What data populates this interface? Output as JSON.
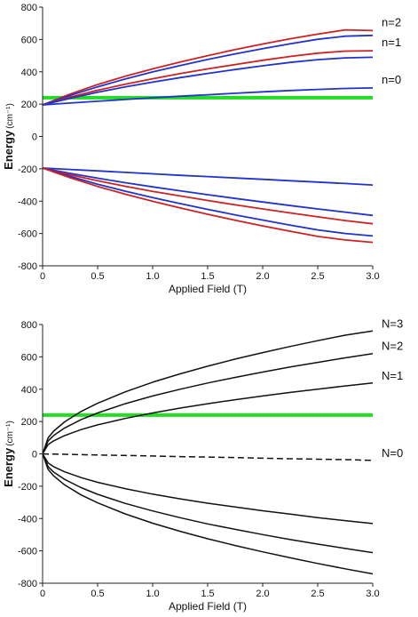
{
  "chart_data": [
    {
      "type": "line",
      "xlabel": "Applied Field (T)",
      "ylabel": "Energy",
      "ylabel_unit": "(cm⁻¹)",
      "xlim": [
        0,
        3.0
      ],
      "ylim": [
        -800,
        800
      ],
      "x_ticks": [
        0,
        0.5,
        1.0,
        1.5,
        2.0,
        2.5,
        3.0
      ],
      "x_tick_labels": [
        "0",
        "0.5",
        "1.0",
        "1.5",
        "2.0",
        "2.5",
        "3.0"
      ],
      "y_ticks": [
        -800,
        -600,
        -400,
        -200,
        0,
        200,
        400,
        600,
        800
      ],
      "y_tick_labels": [
        "-800",
        "-600",
        "-400",
        "-200",
        "0",
        "200",
        "400",
        "600",
        "800"
      ],
      "grid": false,
      "gap_band": [
        0,
        200
      ],
      "x": [
        0,
        0.25,
        0.5,
        0.75,
        1.0,
        1.25,
        1.5,
        1.75,
        2.0,
        2.25,
        2.5,
        2.75,
        3.0
      ],
      "series": [
        {
          "name": "n=2",
          "label": "n=2",
          "color": "#cc2222",
          "width": 1.8,
          "dash": "",
          "values": [
            195,
            262,
            321,
            372,
            418,
            460,
            500,
            537,
            572,
            604,
            633,
            659,
            655
          ]
        },
        {
          "name": "",
          "color": "#2233cc",
          "width": 1.8,
          "dash": "",
          "values": [
            195,
            254,
            307,
            355,
            399,
            439,
            476,
            511,
            543,
            573,
            601,
            620,
            625
          ]
        },
        {
          "name": "n=1",
          "label": "n=1",
          "color": "#cc2222",
          "width": 1.8,
          "dash": "",
          "values": [
            195,
            243,
            286,
            323,
            357,
            389,
            418,
            445,
            471,
            495,
            515,
            528,
            530
          ]
        },
        {
          "name": "",
          "color": "#2233cc",
          "width": 1.8,
          "dash": "",
          "values": [
            195,
            236,
            273,
            306,
            336,
            364,
            390,
            414,
            437,
            458,
            475,
            486,
            490
          ]
        },
        {
          "name": "n=0",
          "label": "n=0",
          "color": "#2233cc",
          "width": 1.8,
          "dash": "",
          "values": [
            195,
            207,
            218,
            229,
            239,
            249,
            258,
            267,
            276,
            284,
            291,
            297,
            300
          ]
        },
        {
          "name": "",
          "color": "#2233cc",
          "width": 1.8,
          "dash": "",
          "values": [
            -195,
            -204,
            -213,
            -222,
            -231,
            -240,
            -248,
            -257,
            -265,
            -274,
            -282,
            -291,
            -300
          ]
        },
        {
          "name": "",
          "color": "#2233cc",
          "width": 1.8,
          "dash": "",
          "values": [
            -195,
            -228,
            -258,
            -286,
            -312,
            -336,
            -360,
            -383,
            -405,
            -427,
            -448,
            -468,
            -488
          ]
        },
        {
          "name": "",
          "color": "#cc2222",
          "width": 1.8,
          "dash": "",
          "values": [
            -195,
            -237,
            -274,
            -308,
            -339,
            -368,
            -396,
            -423,
            -448,
            -473,
            -497,
            -520,
            -540
          ]
        },
        {
          "name": "",
          "color": "#2233cc",
          "width": 1.8,
          "dash": "",
          "values": [
            -195,
            -247,
            -295,
            -338,
            -378,
            -415,
            -451,
            -485,
            -517,
            -548,
            -578,
            -600,
            -615
          ]
        },
        {
          "name": "",
          "color": "#cc2222",
          "width": 1.8,
          "dash": "",
          "values": [
            -195,
            -255,
            -309,
            -357,
            -401,
            -442,
            -481,
            -518,
            -553,
            -586,
            -618,
            -640,
            -655
          ]
        }
      ],
      "reference_line": {
        "y": 240,
        "color": "#22dd22"
      }
    },
    {
      "type": "line",
      "xlabel": "Applied Field (T)",
      "ylabel": "Energy",
      "ylabel_unit": "(cm⁻¹)",
      "xlim": [
        0,
        3.0
      ],
      "ylim": [
        -800,
        800
      ],
      "x_ticks": [
        0,
        0.5,
        1.0,
        1.5,
        2.0,
        2.5,
        3.0
      ],
      "x_tick_labels": [
        "0",
        "0.5",
        "1.0",
        "1.5",
        "2.0",
        "2.5",
        "3.0"
      ],
      "y_ticks": [
        -800,
        -600,
        -400,
        -200,
        0,
        200,
        400,
        600,
        800
      ],
      "y_tick_labels": [
        "-800",
        "-600",
        "-400",
        "-200",
        "0",
        "200",
        "400",
        "600",
        "800"
      ],
      "grid": false,
      "x": [
        0,
        0.05,
        0.1,
        0.2,
        0.35,
        0.5,
        0.75,
        1.0,
        1.25,
        1.5,
        1.75,
        2.0,
        2.25,
        2.5,
        2.75,
        3.0
      ],
      "series": [
        {
          "name": "N=3",
          "label": "N=3",
          "color": "#111111",
          "width": 1.5,
          "dash": "",
          "values": [
            0,
            99,
            140,
            198,
            262,
            313,
            383,
            443,
            495,
            542,
            586,
            626,
            664,
            700,
            734,
            760
          ]
        },
        {
          "name": "N=2",
          "label": "N=2",
          "color": "#111111",
          "width": 1.5,
          "dash": "",
          "values": [
            0,
            80,
            113,
            160,
            212,
            253,
            310,
            358,
            400,
            438,
            473,
            506,
            537,
            566,
            594,
            620
          ]
        },
        {
          "name": "N=1",
          "label": "N=1",
          "color": "#111111",
          "width": 1.5,
          "dash": "",
          "values": [
            0,
            57,
            80,
            113,
            150,
            179,
            219,
            253,
            283,
            310,
            335,
            358,
            380,
            400,
            420,
            438
          ]
        },
        {
          "name": "N=0",
          "label": "N=0",
          "color": "#111111",
          "width": 1.5,
          "dash": "7,4",
          "values": [
            0,
            -1,
            -1,
            -3,
            -5,
            -7,
            -10,
            -13,
            -17,
            -20,
            -23,
            -27,
            -30,
            -33,
            -36,
            -40
          ]
        },
        {
          "name": "",
          "color": "#111111",
          "width": 1.5,
          "dash": "",
          "values": [
            0,
            -56,
            -79,
            -111,
            -147,
            -176,
            -215,
            -249,
            -278,
            -305,
            -329,
            -352,
            -373,
            -394,
            -413,
            -431
          ]
        },
        {
          "name": "",
          "color": "#111111",
          "width": 1.5,
          "dash": "",
          "values": [
            0,
            -79,
            -112,
            -158,
            -209,
            -250,
            -306,
            -353,
            -395,
            -433,
            -467,
            -499,
            -530,
            -558,
            -585,
            -611
          ]
        },
        {
          "name": "",
          "color": "#111111",
          "width": 1.5,
          "dash": "",
          "values": [
            0,
            -96,
            -136,
            -192,
            -254,
            -303,
            -371,
            -429,
            -479,
            -525,
            -567,
            -606,
            -643,
            -678,
            -711,
            -742
          ]
        }
      ],
      "reference_line": {
        "y": 240,
        "color": "#22dd22"
      }
    }
  ]
}
